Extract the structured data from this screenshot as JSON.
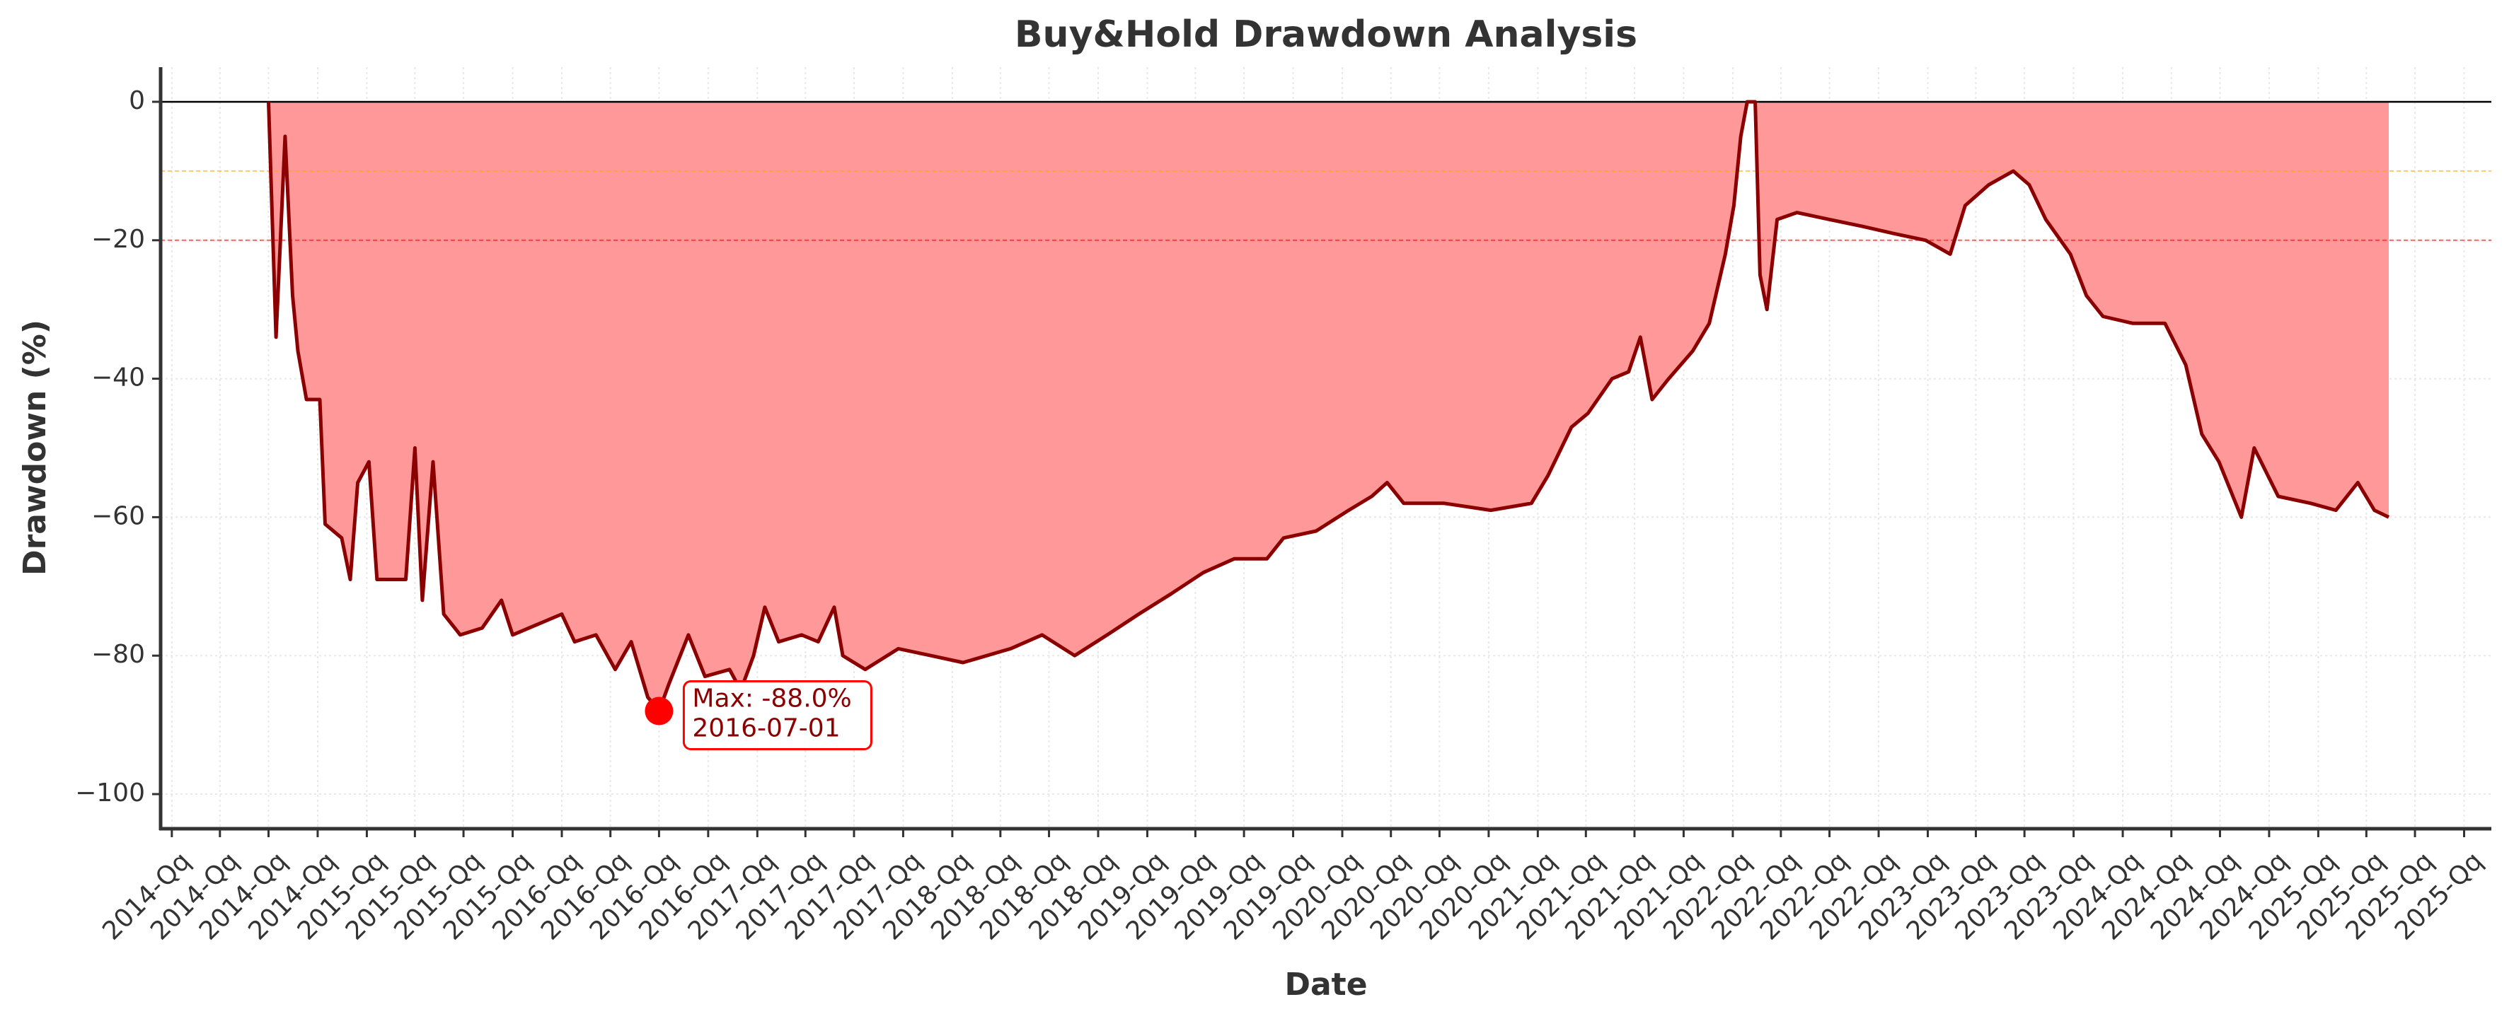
{
  "chart_data": {
    "type": "area",
    "title": "Buy&Hold Drawdown Analysis",
    "xlabel": "Date",
    "ylabel": "Drawdown (%)",
    "color": "#8b0000",
    "fill_color": "#ff9999",
    "grid": true,
    "x": [
      "2014-07-01",
      "2014-07-15",
      "2014-08-01",
      "2014-08-15",
      "2014-08-25",
      "2014-09-10",
      "2014-10-05",
      "2014-10-15",
      "2014-11-15",
      "2014-12-01",
      "2014-12-15",
      "2015-01-05",
      "2015-01-20",
      "2015-03-15",
      "2015-04-01",
      "2015-04-15",
      "2015-05-05",
      "2015-05-25",
      "2015-06-25",
      "2015-08-05",
      "2015-09-10",
      "2015-10-01",
      "2016-01-01",
      "2016-01-25",
      "2016-03-05",
      "2016-04-10",
      "2016-05-10",
      "2016-06-10",
      "2016-07-01",
      "2016-07-20",
      "2016-08-25",
      "2016-09-25",
      "2016-11-10",
      "2016-12-01",
      "2016-12-25",
      "2017-01-15",
      "2017-02-10",
      "2017-03-25",
      "2017-04-25",
      "2017-05-25",
      "2017-06-10",
      "2017-07-22",
      "2017-09-22",
      "2017-11-22",
      "2018-01-21",
      "2018-04-20",
      "2018-06-18",
      "2018-08-18",
      "2018-10-18",
      "2018-12-16",
      "2019-02-16",
      "2019-04-16",
      "2019-06-13",
      "2019-08-13",
      "2019-09-13",
      "2019-11-13",
      "2020-01-13",
      "2020-02-25",
      "2020-03-25",
      "2020-04-25",
      "2020-07-10",
      "2020-10-05",
      "2020-12-20",
      "2021-01-20",
      "2021-03-05",
      "2021-04-05",
      "2021-05-20",
      "2021-06-20",
      "2021-07-12",
      "2021-08-03",
      "2021-09-03",
      "2021-10-18",
      "2021-11-18",
      "2021-12-18",
      "2022-01-03",
      "2022-01-16",
      "2022-01-28",
      "2022-02-12",
      "2022-02-21",
      "2022-03-06",
      "2022-03-25",
      "2022-05-01",
      "2022-07-01",
      "2022-09-01",
      "2022-10-28",
      "2022-12-28",
      "2023-02-12",
      "2023-03-12",
      "2023-04-25",
      "2023-06-10",
      "2023-07-10",
      "2023-08-10",
      "2023-09-25",
      "2023-10-25",
      "2023-11-25",
      "2024-01-20",
      "2024-03-20",
      "2024-04-28",
      "2024-05-28",
      "2024-06-29",
      "2024-08-10",
      "2024-09-03",
      "2024-10-18",
      "2024-12-18",
      "2025-02-03",
      "2025-03-16",
      "2025-04-16",
      "2025-05-13"
    ],
    "values": [
      0,
      -34,
      -5,
      -28,
      -36,
      -43,
      -43,
      -61,
      -63,
      -69,
      -55,
      -52,
      -69,
      -69,
      -50,
      -72,
      -52,
      -74,
      -77,
      -76,
      -72,
      -77,
      -74,
      -78,
      -77,
      -82,
      -78,
      -86,
      -88,
      -84,
      -77,
      -83,
      -82,
      -85,
      -80,
      -73,
      -78,
      -77,
      -78,
      -73,
      -80,
      -82,
      -79,
      -80,
      -81,
      -79,
      -77,
      -80,
      -77,
      -74,
      -71,
      -68,
      -66,
      -66,
      -63,
      -62,
      -59,
      -57,
      -55,
      -58,
      -58,
      -59,
      -58,
      -54,
      -47,
      -45,
      -40,
      -39,
      -34,
      -43,
      -40,
      -36,
      -32,
      -22,
      -15,
      -5,
      0,
      0,
      -25,
      -30,
      -17,
      -16,
      -17,
      -18,
      -19,
      -20,
      -22,
      -15,
      -12,
      -10,
      -12,
      -17,
      -22,
      -28,
      -31,
      -32,
      -32,
      -38,
      -48,
      -52,
      -60,
      -50,
      -57,
      -58,
      -59,
      -55,
      -59,
      -60
    ],
    "hlines": [
      {
        "value": 0,
        "color": "#000000"
      },
      {
        "value": -10,
        "color": "#ffa500"
      },
      {
        "value": -20,
        "color": "#ff0000"
      }
    ],
    "annotation": {
      "text": [
        "Max: -88.0%",
        "2016-07-01"
      ],
      "x": "2016-07-01",
      "y": -88,
      "color": "#ff0000"
    },
    "xlim": [
      "2013-12-11",
      "2025-11-21"
    ],
    "xticks": [
      {
        "value": "2014-01-01",
        "label": "2014-Qq"
      },
      {
        "value": "2014-04-01",
        "label": "2014-Qq"
      },
      {
        "value": "2014-07-01",
        "label": "2014-Qq"
      },
      {
        "value": "2014-10-01",
        "label": "2014-Qq"
      },
      {
        "value": "2015-01-01",
        "label": "2015-Qq"
      },
      {
        "value": "2015-04-01",
        "label": "2015-Qq"
      },
      {
        "value": "2015-07-01",
        "label": "2015-Qq"
      },
      {
        "value": "2015-10-01",
        "label": "2015-Qq"
      },
      {
        "value": "2016-01-01",
        "label": "2016-Qq"
      },
      {
        "value": "2016-04-01",
        "label": "2016-Qq"
      },
      {
        "value": "2016-07-01",
        "label": "2016-Qq"
      },
      {
        "value": "2016-10-01",
        "label": "2016-Qq"
      },
      {
        "value": "2017-01-01",
        "label": "2017-Qq"
      },
      {
        "value": "2017-04-01",
        "label": "2017-Qq"
      },
      {
        "value": "2017-07-01",
        "label": "2017-Qq"
      },
      {
        "value": "2017-10-01",
        "label": "2017-Qq"
      },
      {
        "value": "2018-01-01",
        "label": "2018-Qq"
      },
      {
        "value": "2018-04-01",
        "label": "2018-Qq"
      },
      {
        "value": "2018-07-01",
        "label": "2018-Qq"
      },
      {
        "value": "2018-10-01",
        "label": "2018-Qq"
      },
      {
        "value": "2019-01-01",
        "label": "2019-Qq"
      },
      {
        "value": "2019-04-01",
        "label": "2019-Qq"
      },
      {
        "value": "2019-07-01",
        "label": "2019-Qq"
      },
      {
        "value": "2019-10-01",
        "label": "2019-Qq"
      },
      {
        "value": "2020-01-01",
        "label": "2020-Qq"
      },
      {
        "value": "2020-04-01",
        "label": "2020-Qq"
      },
      {
        "value": "2020-07-01",
        "label": "2020-Qq"
      },
      {
        "value": "2020-10-01",
        "label": "2020-Qq"
      },
      {
        "value": "2021-01-01",
        "label": "2021-Qq"
      },
      {
        "value": "2021-04-01",
        "label": "2021-Qq"
      },
      {
        "value": "2021-07-01",
        "label": "2021-Qq"
      },
      {
        "value": "2021-10-01",
        "label": "2021-Qq"
      },
      {
        "value": "2022-01-01",
        "label": "2022-Qq"
      },
      {
        "value": "2022-04-01",
        "label": "2022-Qq"
      },
      {
        "value": "2022-07-01",
        "label": "2022-Qq"
      },
      {
        "value": "2022-10-01",
        "label": "2022-Qq"
      },
      {
        "value": "2023-01-01",
        "label": "2023-Qq"
      },
      {
        "value": "2023-04-01",
        "label": "2023-Qq"
      },
      {
        "value": "2023-07-01",
        "label": "2023-Qq"
      },
      {
        "value": "2023-10-01",
        "label": "2023-Qq"
      },
      {
        "value": "2024-01-01",
        "label": "2024-Qq"
      },
      {
        "value": "2024-04-01",
        "label": "2024-Qq"
      },
      {
        "value": "2024-07-01",
        "label": "2024-Qq"
      },
      {
        "value": "2024-10-01",
        "label": "2024-Qq"
      },
      {
        "value": "2025-01-01",
        "label": "2025-Qq"
      },
      {
        "value": "2025-04-01",
        "label": "2025-Qq"
      },
      {
        "value": "2025-07-01",
        "label": "2025-Qq"
      },
      {
        "value": "2025-10-01",
        "label": "2025-Qq"
      }
    ],
    "ylim": [
      -105,
      5
    ],
    "yticks": [
      0,
      {
        "value": -20,
        "label": "−20"
      },
      {
        "value": -40,
        "label": "−40"
      },
      {
        "value": -60,
        "label": "−60"
      },
      {
        "value": -80,
        "label": "−80"
      },
      {
        "value": -100,
        "label": "−100"
      }
    ]
  }
}
